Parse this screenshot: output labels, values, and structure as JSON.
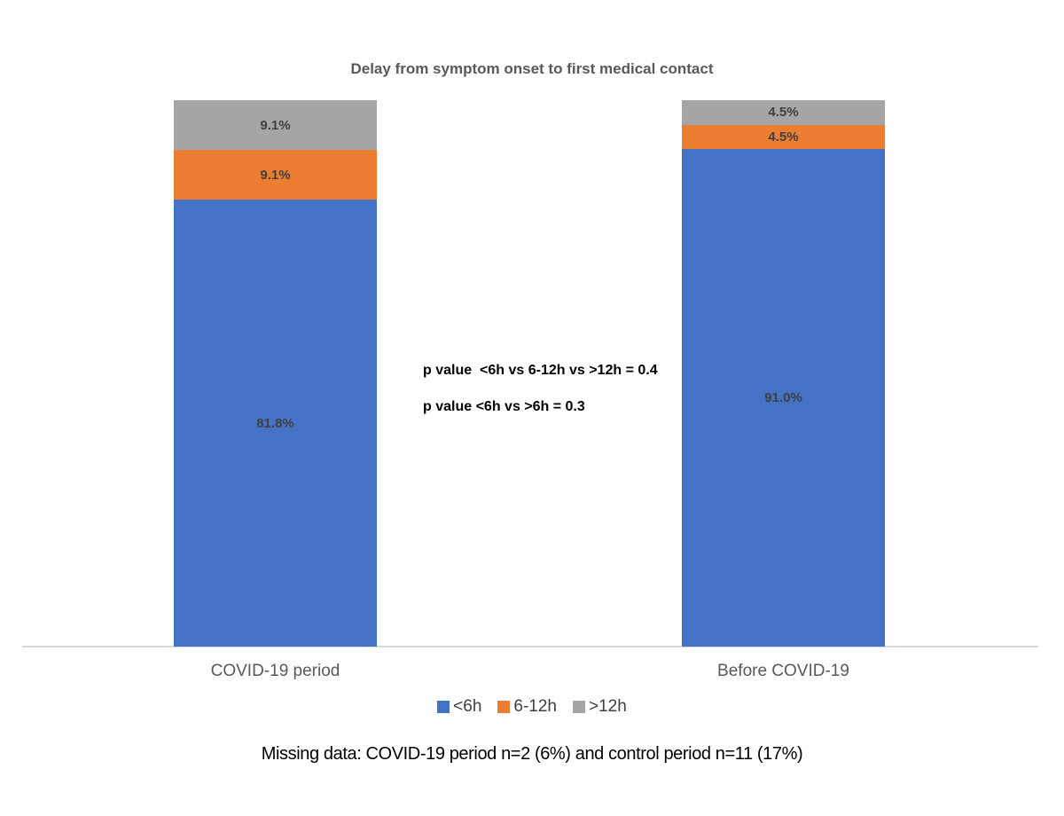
{
  "chart_data": {
    "type": "bar",
    "subtype": "100%-stacked-column",
    "title": "Delay from symptom onset to first medical contact",
    "categories": [
      "COVID-19 period",
      "Before COVID-19"
    ],
    "series": [
      {
        "name": "<6h",
        "color": "#4472C4",
        "values": [
          81.8,
          91.0
        ],
        "labels": [
          "81.8%",
          "91.0%"
        ]
      },
      {
        "name": "6-12h",
        "color": "#ED7D31",
        "values": [
          9.1,
          4.5
        ],
        "labels": [
          "9.1%",
          "4.5%"
        ]
      },
      {
        "name": ">12h",
        "color": "#A5A5A5",
        "values": [
          9.1,
          4.5
        ],
        "labels": [
          "9.1%",
          "4.5%"
        ]
      }
    ],
    "ylim": [
      0,
      100
    ],
    "grid": false,
    "legend_position": "bottom",
    "axis_line_color": "#D9D9D9",
    "annotations": [
      "p value  <6h vs 6-12h vs >12h = 0.4",
      "p value <6h vs >6h = 0.3"
    ],
    "caption": "Missing data: COVID-19 period n=2 (6%) and control period n=11 (17%)"
  }
}
